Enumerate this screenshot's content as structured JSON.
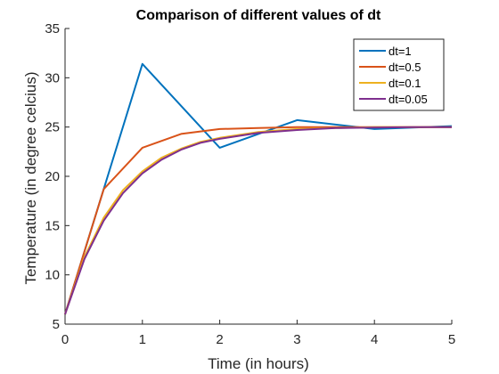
{
  "chart_data": {
    "type": "line",
    "title": "Comparison of different values of dt",
    "xlabel": "Time (in hours)",
    "ylabel": "Temperature (in degree celcius)",
    "xlim": [
      0,
      5
    ],
    "ylim": [
      5,
      35
    ],
    "xticks": [
      "0",
      "1",
      "2",
      "3",
      "4",
      "5"
    ],
    "yticks": [
      "5",
      "10",
      "15",
      "20",
      "25",
      "30",
      "35"
    ],
    "grid": false,
    "legend_position": "top-right",
    "series": [
      {
        "name": "dt=1",
        "color": "#0072BD",
        "x": [
          0,
          1,
          2,
          3,
          4,
          5
        ],
        "y": [
          6.0,
          31.4,
          22.9,
          25.7,
          24.8,
          25.1
        ]
      },
      {
        "name": "dt=0.5",
        "color": "#D95319",
        "x": [
          0,
          0.5,
          1.0,
          1.5,
          2.0,
          2.5,
          3.0,
          3.5,
          4.0,
          4.5,
          5.0
        ],
        "y": [
          6.0,
          18.7,
          22.9,
          24.3,
          24.8,
          24.9,
          25.0,
          25.0,
          25.0,
          25.0,
          25.0
        ]
      },
      {
        "name": "dt=0.1",
        "color": "#EDB120",
        "x": [
          0,
          0.25,
          0.5,
          0.75,
          1.0,
          1.25,
          1.5,
          1.75,
          2.0,
          2.5,
          3.0,
          3.5,
          4.0,
          4.5,
          5.0
        ],
        "y": [
          6.0,
          11.8,
          15.8,
          18.6,
          20.5,
          21.9,
          22.8,
          23.5,
          23.9,
          24.5,
          24.8,
          24.9,
          25.0,
          25.0,
          25.0
        ]
      },
      {
        "name": "dt=0.05",
        "color": "#7E2F8E",
        "x": [
          0,
          0.25,
          0.5,
          0.75,
          1.0,
          1.25,
          1.5,
          1.75,
          2.0,
          2.5,
          3.0,
          3.5,
          4.0,
          4.5,
          5.0
        ],
        "y": [
          6.0,
          11.6,
          15.5,
          18.3,
          20.3,
          21.7,
          22.7,
          23.4,
          23.8,
          24.4,
          24.7,
          24.9,
          24.95,
          25.0,
          25.0
        ]
      }
    ]
  }
}
